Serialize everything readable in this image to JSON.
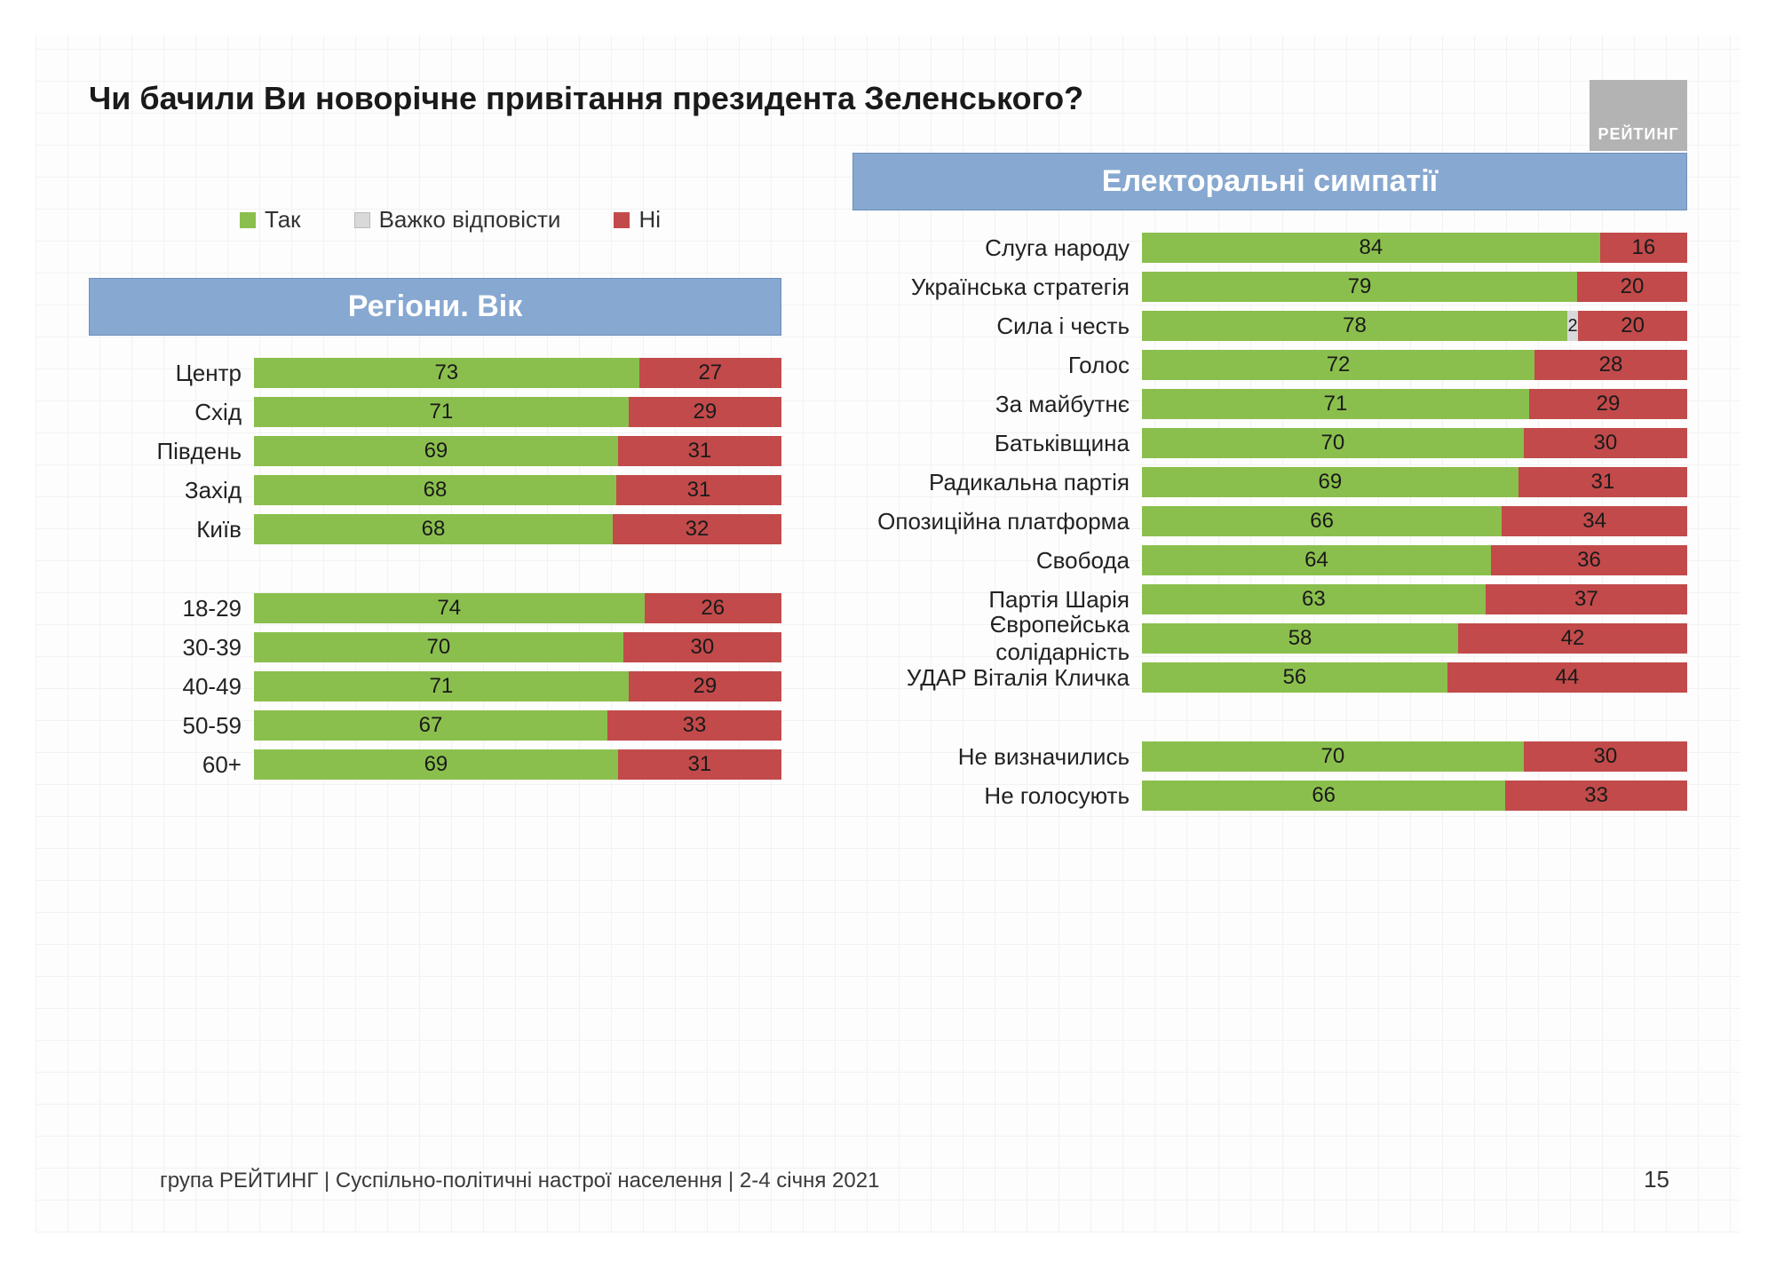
{
  "title": "Чи бачили Ви новорічне привітання президента Зеленського?",
  "logo_text": "РЕЙТИНГ",
  "page_number": "15",
  "footer": "група РЕЙТИНГ | Суспільно-політичні настрої населення  | 2-4 січня 2021",
  "colors": {
    "yes": "#8bbf4d",
    "hard": "#d9d9d9",
    "no": "#c24a4a",
    "header_bg": "#87a8d0",
    "header_text": "#ffffff"
  },
  "legend": {
    "yes": "Так",
    "hard": "Важко відповісти",
    "no": "Ні"
  },
  "left_header": "Регіони. Вік",
  "right_header": "Електоральні симпатії",
  "regions": [
    {
      "label": "Центр",
      "yes": 73,
      "hard": 0,
      "no": 27
    },
    {
      "label": "Схід",
      "yes": 71,
      "hard": 0,
      "no": 29
    },
    {
      "label": "Південь",
      "yes": 69,
      "hard": 0,
      "no": 31
    },
    {
      "label": "Захід",
      "yes": 68,
      "hard": 0,
      "no": 31
    },
    {
      "label": "Київ",
      "yes": 68,
      "hard": 0,
      "no": 32
    }
  ],
  "ages": [
    {
      "label": "18-29",
      "yes": 74,
      "hard": 0,
      "no": 26
    },
    {
      "label": "30-39",
      "yes": 70,
      "hard": 0,
      "no": 30
    },
    {
      "label": "40-49",
      "yes": 71,
      "hard": 0,
      "no": 29
    },
    {
      "label": "50-59",
      "yes": 67,
      "hard": 0,
      "no": 33
    },
    {
      "label": "60+",
      "yes": 69,
      "hard": 0,
      "no": 31
    }
  ],
  "parties": [
    {
      "label": "Слуга народу",
      "yes": 84,
      "hard": 0,
      "no": 16
    },
    {
      "label": "Українська стратегія",
      "yes": 79,
      "hard": 0,
      "no": 20
    },
    {
      "label": "Сила і честь",
      "yes": 78,
      "hard": 2,
      "no": 20
    },
    {
      "label": "Голос",
      "yes": 72,
      "hard": 0,
      "no": 28
    },
    {
      "label": "За майбутнє",
      "yes": 71,
      "hard": 0,
      "no": 29
    },
    {
      "label": "Батьківщина",
      "yes": 70,
      "hard": 0,
      "no": 30
    },
    {
      "label": "Радикальна партія",
      "yes": 69,
      "hard": 0,
      "no": 31
    },
    {
      "label": "Опозиційна платформа",
      "yes": 66,
      "hard": 0,
      "no": 34
    },
    {
      "label": "Свобода",
      "yes": 64,
      "hard": 0,
      "no": 36
    },
    {
      "label": "Партія Шарія",
      "yes": 63,
      "hard": 0,
      "no": 37
    },
    {
      "label": "Європейська солідарність",
      "yes": 58,
      "hard": 0,
      "no": 42
    },
    {
      "label": "УДАР Віталія Кличка",
      "yes": 56,
      "hard": 0,
      "no": 44
    }
  ],
  "undecided": [
    {
      "label": "Не визначились",
      "yes": 70,
      "hard": 0,
      "no": 30
    },
    {
      "label": "Не голосують",
      "yes": 66,
      "hard": 0,
      "no": 33
    }
  ]
}
